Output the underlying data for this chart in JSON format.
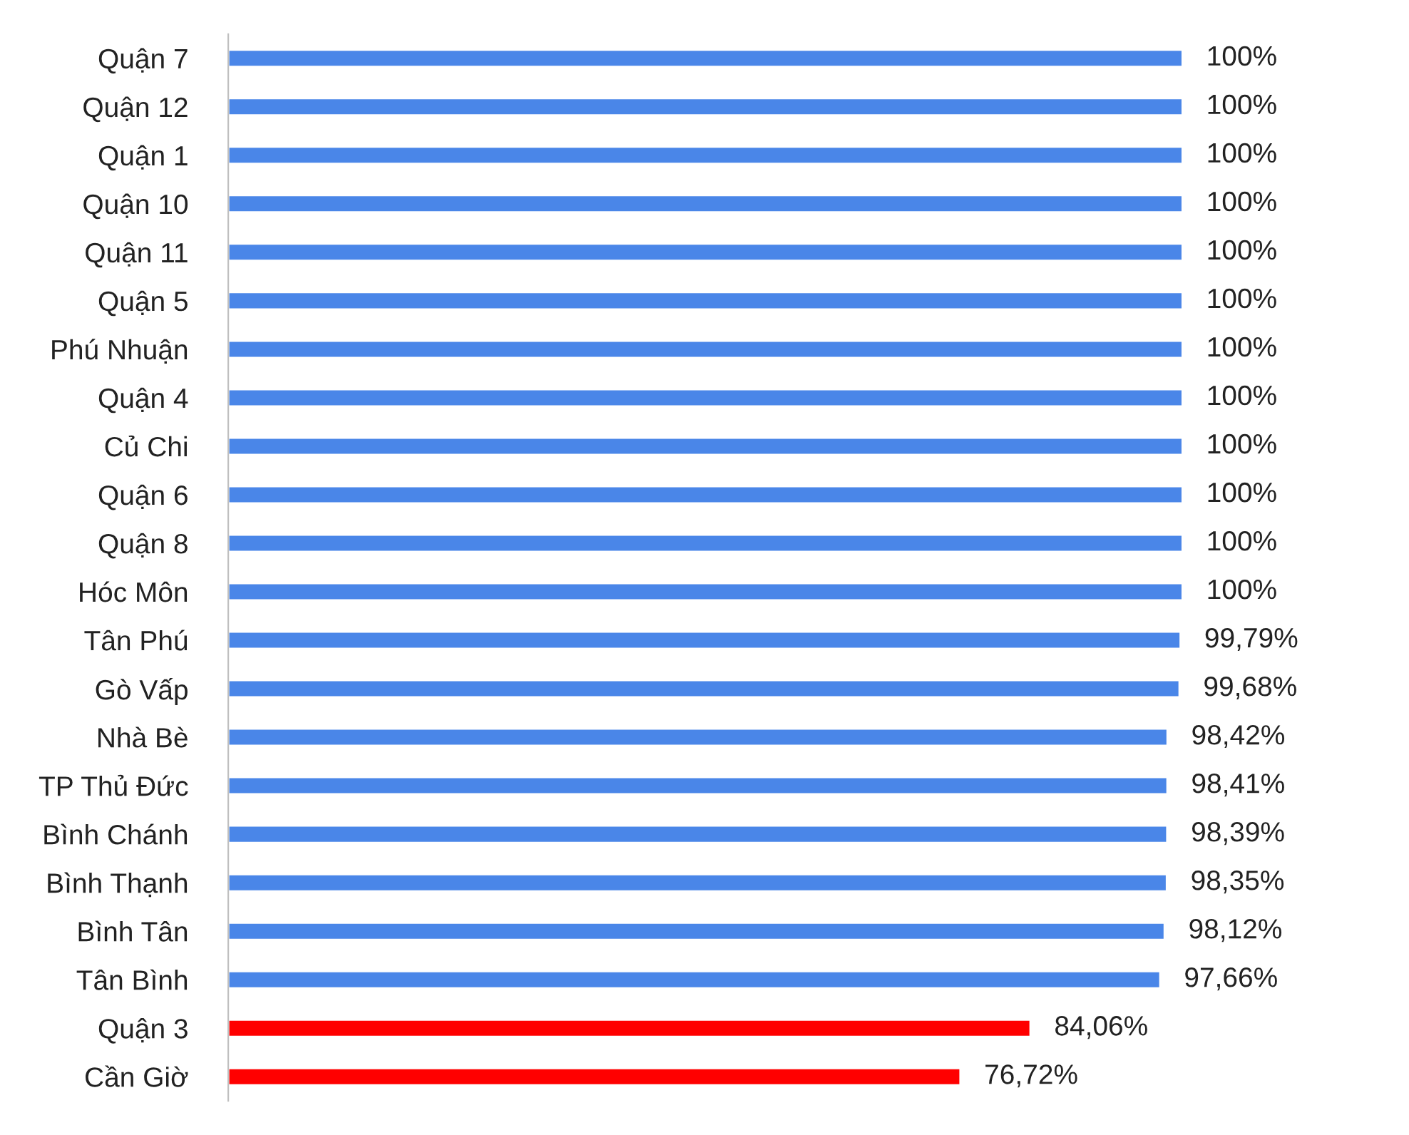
{
  "chart_data": {
    "type": "bar",
    "orientation": "horizontal",
    "categories": [
      "Quận 7",
      "Quận 12",
      "Quận 1",
      "Quận 10",
      "Quận 11",
      "Quận 5",
      "Phú Nhuận",
      "Quận 4",
      "Củ Chi",
      "Quận 6",
      "Quận 8",
      "Hóc Môn",
      "Tân Phú",
      "Gò Vấp",
      "Nhà Bè",
      "TP Thủ Đức",
      "Bình Chánh",
      "Bình Thạnh",
      "Bình Tân",
      "Tân Bình",
      "Quận 3",
      "Cần Giờ"
    ],
    "values": [
      100,
      100,
      100,
      100,
      100,
      100,
      100,
      100,
      100,
      100,
      100,
      100,
      99.79,
      99.68,
      98.42,
      98.41,
      98.39,
      98.35,
      98.12,
      97.66,
      84.06,
      76.72
    ],
    "value_labels": [
      "100%",
      "100%",
      "100%",
      "100%",
      "100%",
      "100%",
      "100%",
      "100%",
      "100%",
      "100%",
      "100%",
      "100%",
      "99,79%",
      "99,68%",
      "98,42%",
      "98,41%",
      "98,39%",
      "98,35%",
      "98,12%",
      "97,66%",
      "84,06%",
      "76,72%"
    ],
    "colors": [
      "#4a86e8",
      "#4a86e8",
      "#4a86e8",
      "#4a86e8",
      "#4a86e8",
      "#4a86e8",
      "#4a86e8",
      "#4a86e8",
      "#4a86e8",
      "#4a86e8",
      "#4a86e8",
      "#4a86e8",
      "#4a86e8",
      "#4a86e8",
      "#4a86e8",
      "#4a86e8",
      "#4a86e8",
      "#4a86e8",
      "#4a86e8",
      "#4a86e8",
      "#ff0000",
      "#ff0000"
    ],
    "grid": false,
    "legend": false
  }
}
